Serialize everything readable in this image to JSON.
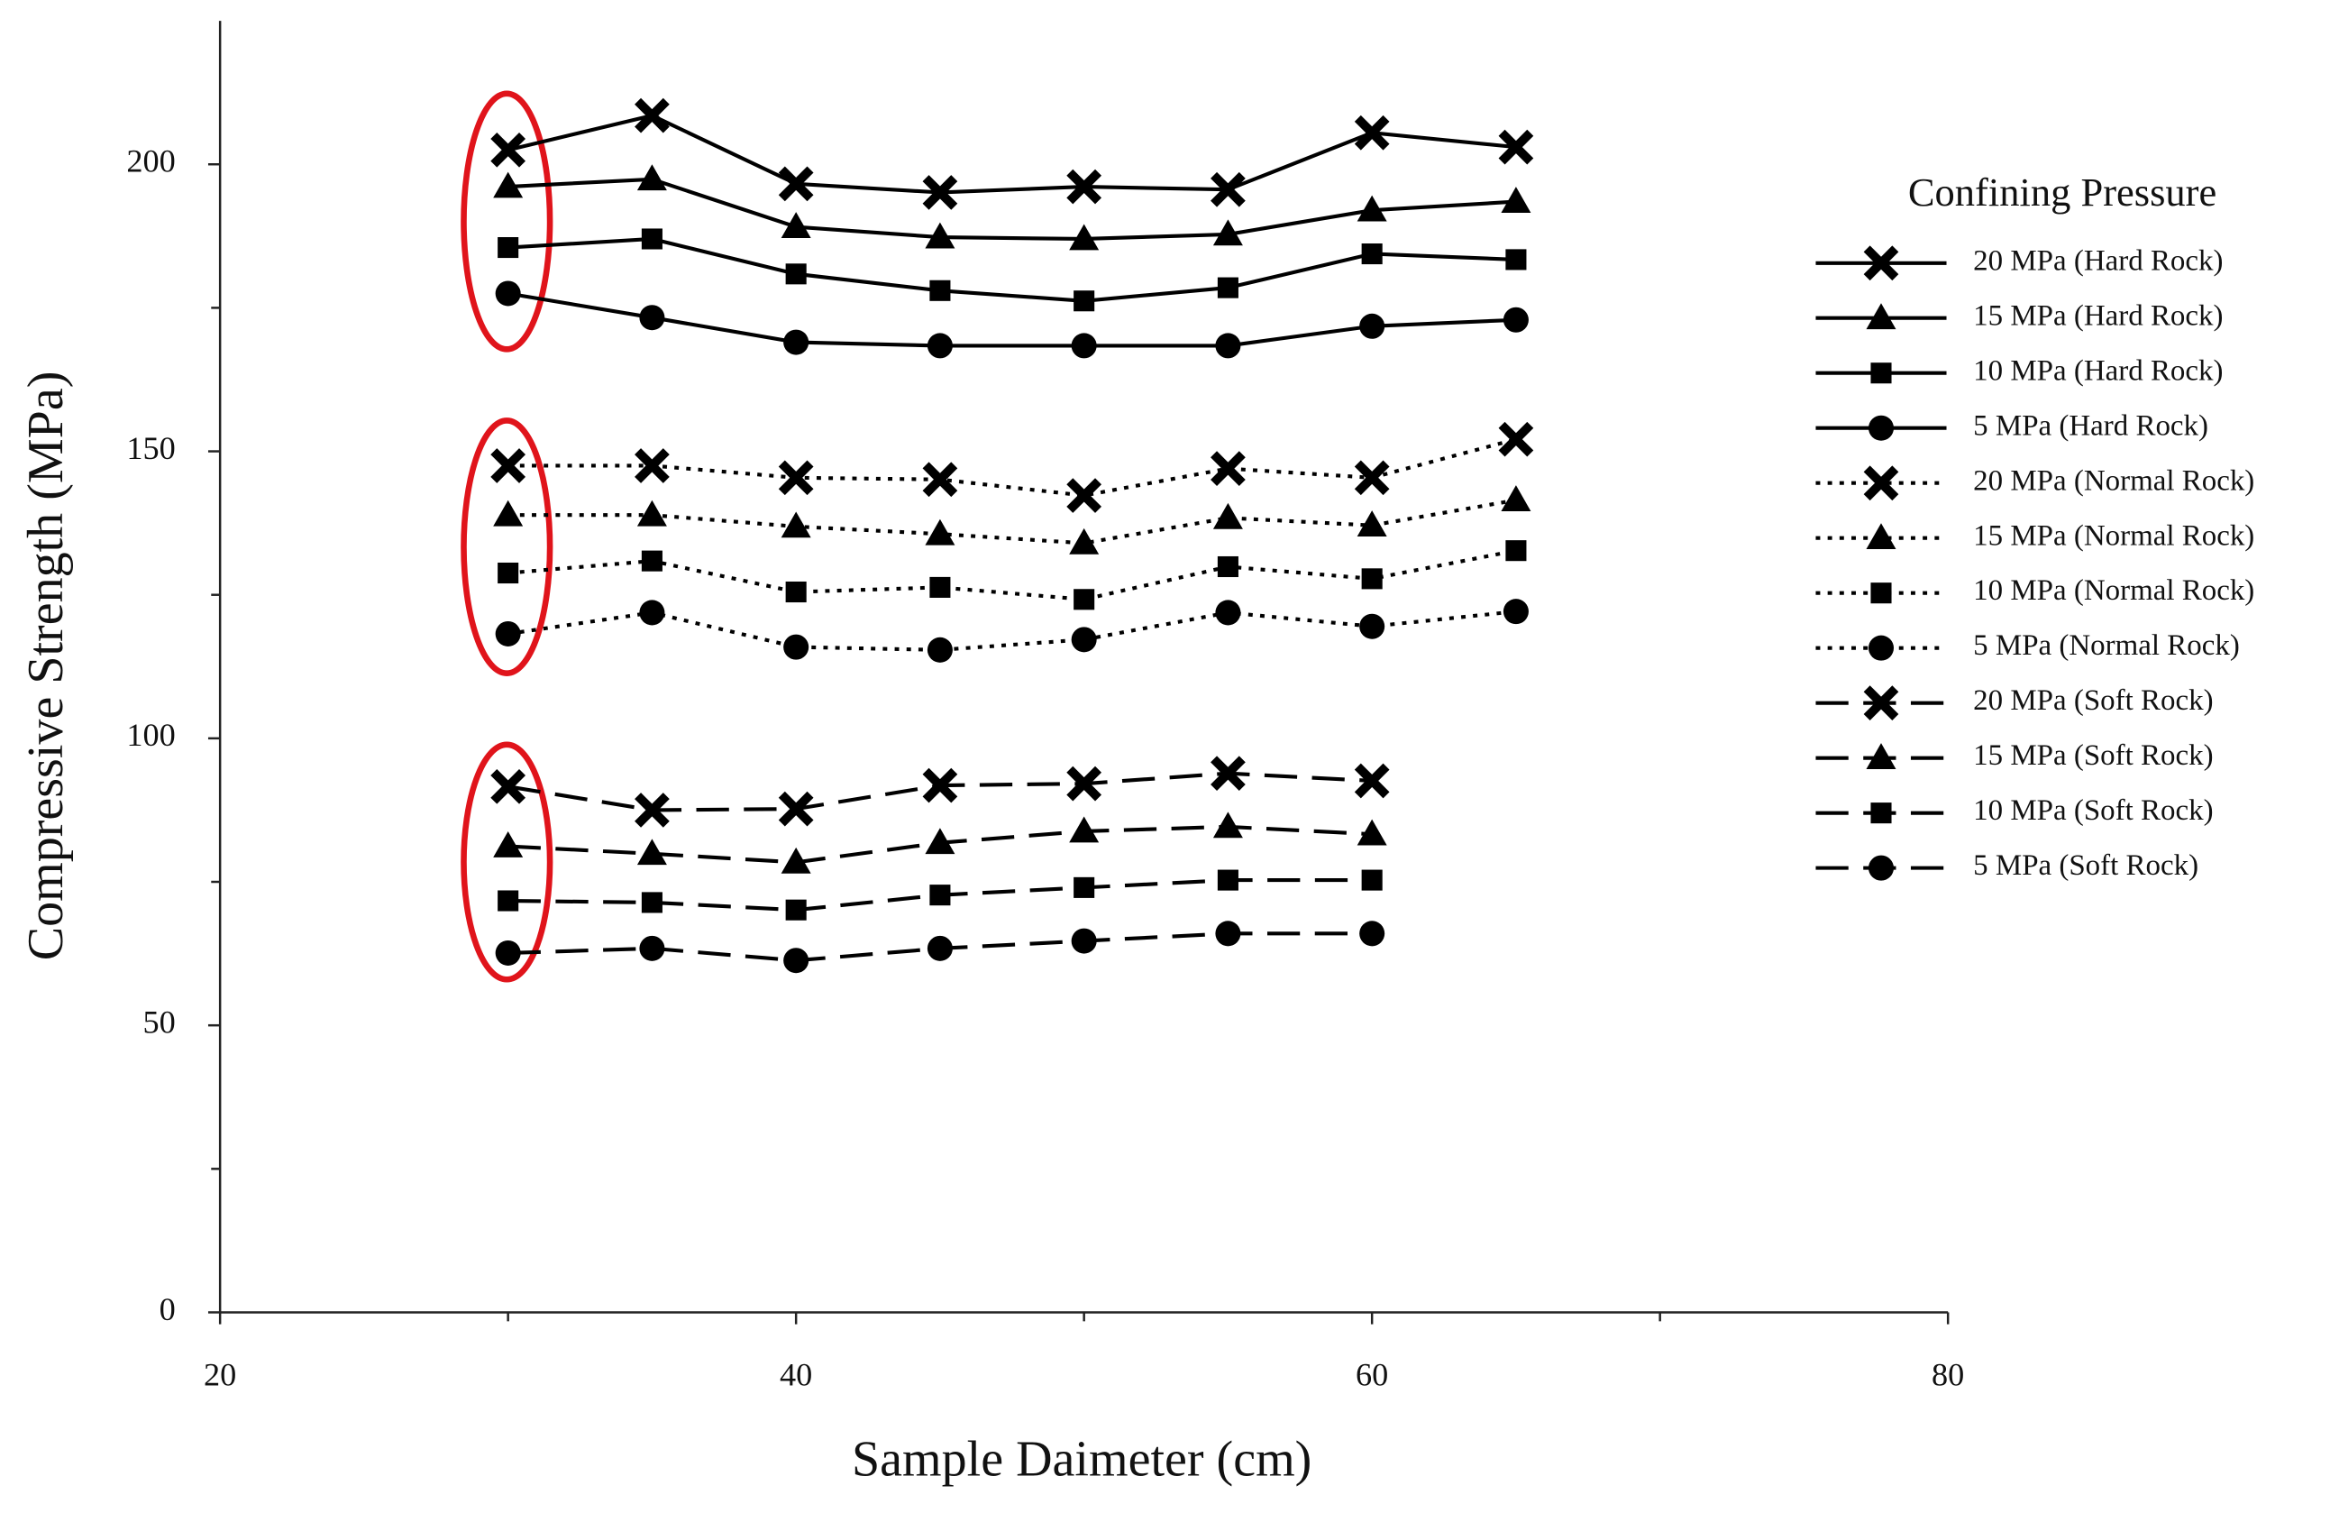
{
  "chart_data": {
    "type": "line",
    "x_label": "Sample Daimeter (cm)",
    "y_label": "Compressive Strength (MPa)",
    "legend_title": "Confining Pressure",
    "legend_position": "right",
    "x": [
      30,
      35,
      40,
      45,
      50,
      55,
      60,
      65
    ],
    "xlim": [
      20,
      80
    ],
    "xticks": [
      20,
      40,
      60,
      80
    ],
    "xminor_ticks": [
      30,
      50,
      70
    ],
    "ylim": [
      0,
      225
    ],
    "yticks": [
      0,
      50,
      100,
      150,
      200
    ],
    "yminor_ticks": [
      25,
      75,
      125,
      175
    ],
    "series": [
      {
        "name": "20 MPa (Hard Rock)",
        "color": "#000000",
        "marker": "x",
        "dash": "solid",
        "values": [
          202.5,
          208.5,
          196.6,
          195.1,
          196.1,
          195.6,
          205.5,
          203
        ]
      },
      {
        "name": "15 MPa (Hard Rock)",
        "color": "#000000",
        "marker": "triangle",
        "dash": "solid",
        "values": [
          196.1,
          197.4,
          189.1,
          187.3,
          187,
          187.8,
          192,
          193.5
        ]
      },
      {
        "name": "10 MPa (Hard Rock)",
        "color": "#000000",
        "marker": "square",
        "dash": "solid",
        "values": [
          185.5,
          187,
          180.9,
          178,
          176.2,
          178.5,
          184.4,
          183.4
        ]
      },
      {
        "name": "5 MPa (Hard Rock)",
        "color": "#000000",
        "marker": "circle",
        "dash": "solid",
        "values": [
          177.5,
          173.3,
          169,
          168.4,
          168.4,
          168.4,
          171.8,
          172.9
        ]
      },
      {
        "name": "20 MPa (Normal Rock)",
        "color": "#000000",
        "marker": "x",
        "dash": "dotted",
        "values": [
          147.5,
          147.5,
          145.4,
          145.1,
          142.3,
          147,
          145.4,
          152.1
        ]
      },
      {
        "name": "15 MPa (Normal Rock)",
        "color": "#000000",
        "marker": "triangle",
        "dash": "dotted",
        "values": [
          138.9,
          138.9,
          136.9,
          135.6,
          134,
          138.4,
          137.1,
          141.5
        ]
      },
      {
        "name": "10 MPa (Normal Rock)",
        "color": "#000000",
        "marker": "square",
        "dash": "dotted",
        "values": [
          128.8,
          130.9,
          125.5,
          126.3,
          124.2,
          129.9,
          127.8,
          132.7
        ]
      },
      {
        "name": "5 MPa (Normal Rock)",
        "color": "#000000",
        "marker": "circle",
        "dash": "dotted",
        "values": [
          118.2,
          121.9,
          115.9,
          115.4,
          117.2,
          121.9,
          119.5,
          122.1
        ]
      },
      {
        "name": "20 MPa (Soft Rock)",
        "color": "#000000",
        "marker": "x",
        "dash": "dashed",
        "values": [
          91.6,
          87.5,
          87.7,
          91.8,
          92.1,
          93.9,
          92.6,
          null
        ]
      },
      {
        "name": "15 MPa (Soft Rock)",
        "color": "#000000",
        "marker": "triangle",
        "dash": "dashed",
        "values": [
          81.2,
          79.9,
          78.4,
          81.8,
          83.8,
          84.6,
          83.3,
          null
        ]
      },
      {
        "name": "10 MPa (Soft Rock)",
        "color": "#000000",
        "marker": "square",
        "dash": "dashed",
        "values": [
          71.7,
          71.4,
          70.1,
          72.7,
          74,
          75.3,
          75.3,
          null
        ]
      },
      {
        "name": "5 MPa (Soft Rock)",
        "color": "#000000",
        "marker": "circle",
        "dash": "dashed",
        "values": [
          62.6,
          63.4,
          61.3,
          63.4,
          64.7,
          66,
          66,
          null
        ]
      }
    ]
  }
}
